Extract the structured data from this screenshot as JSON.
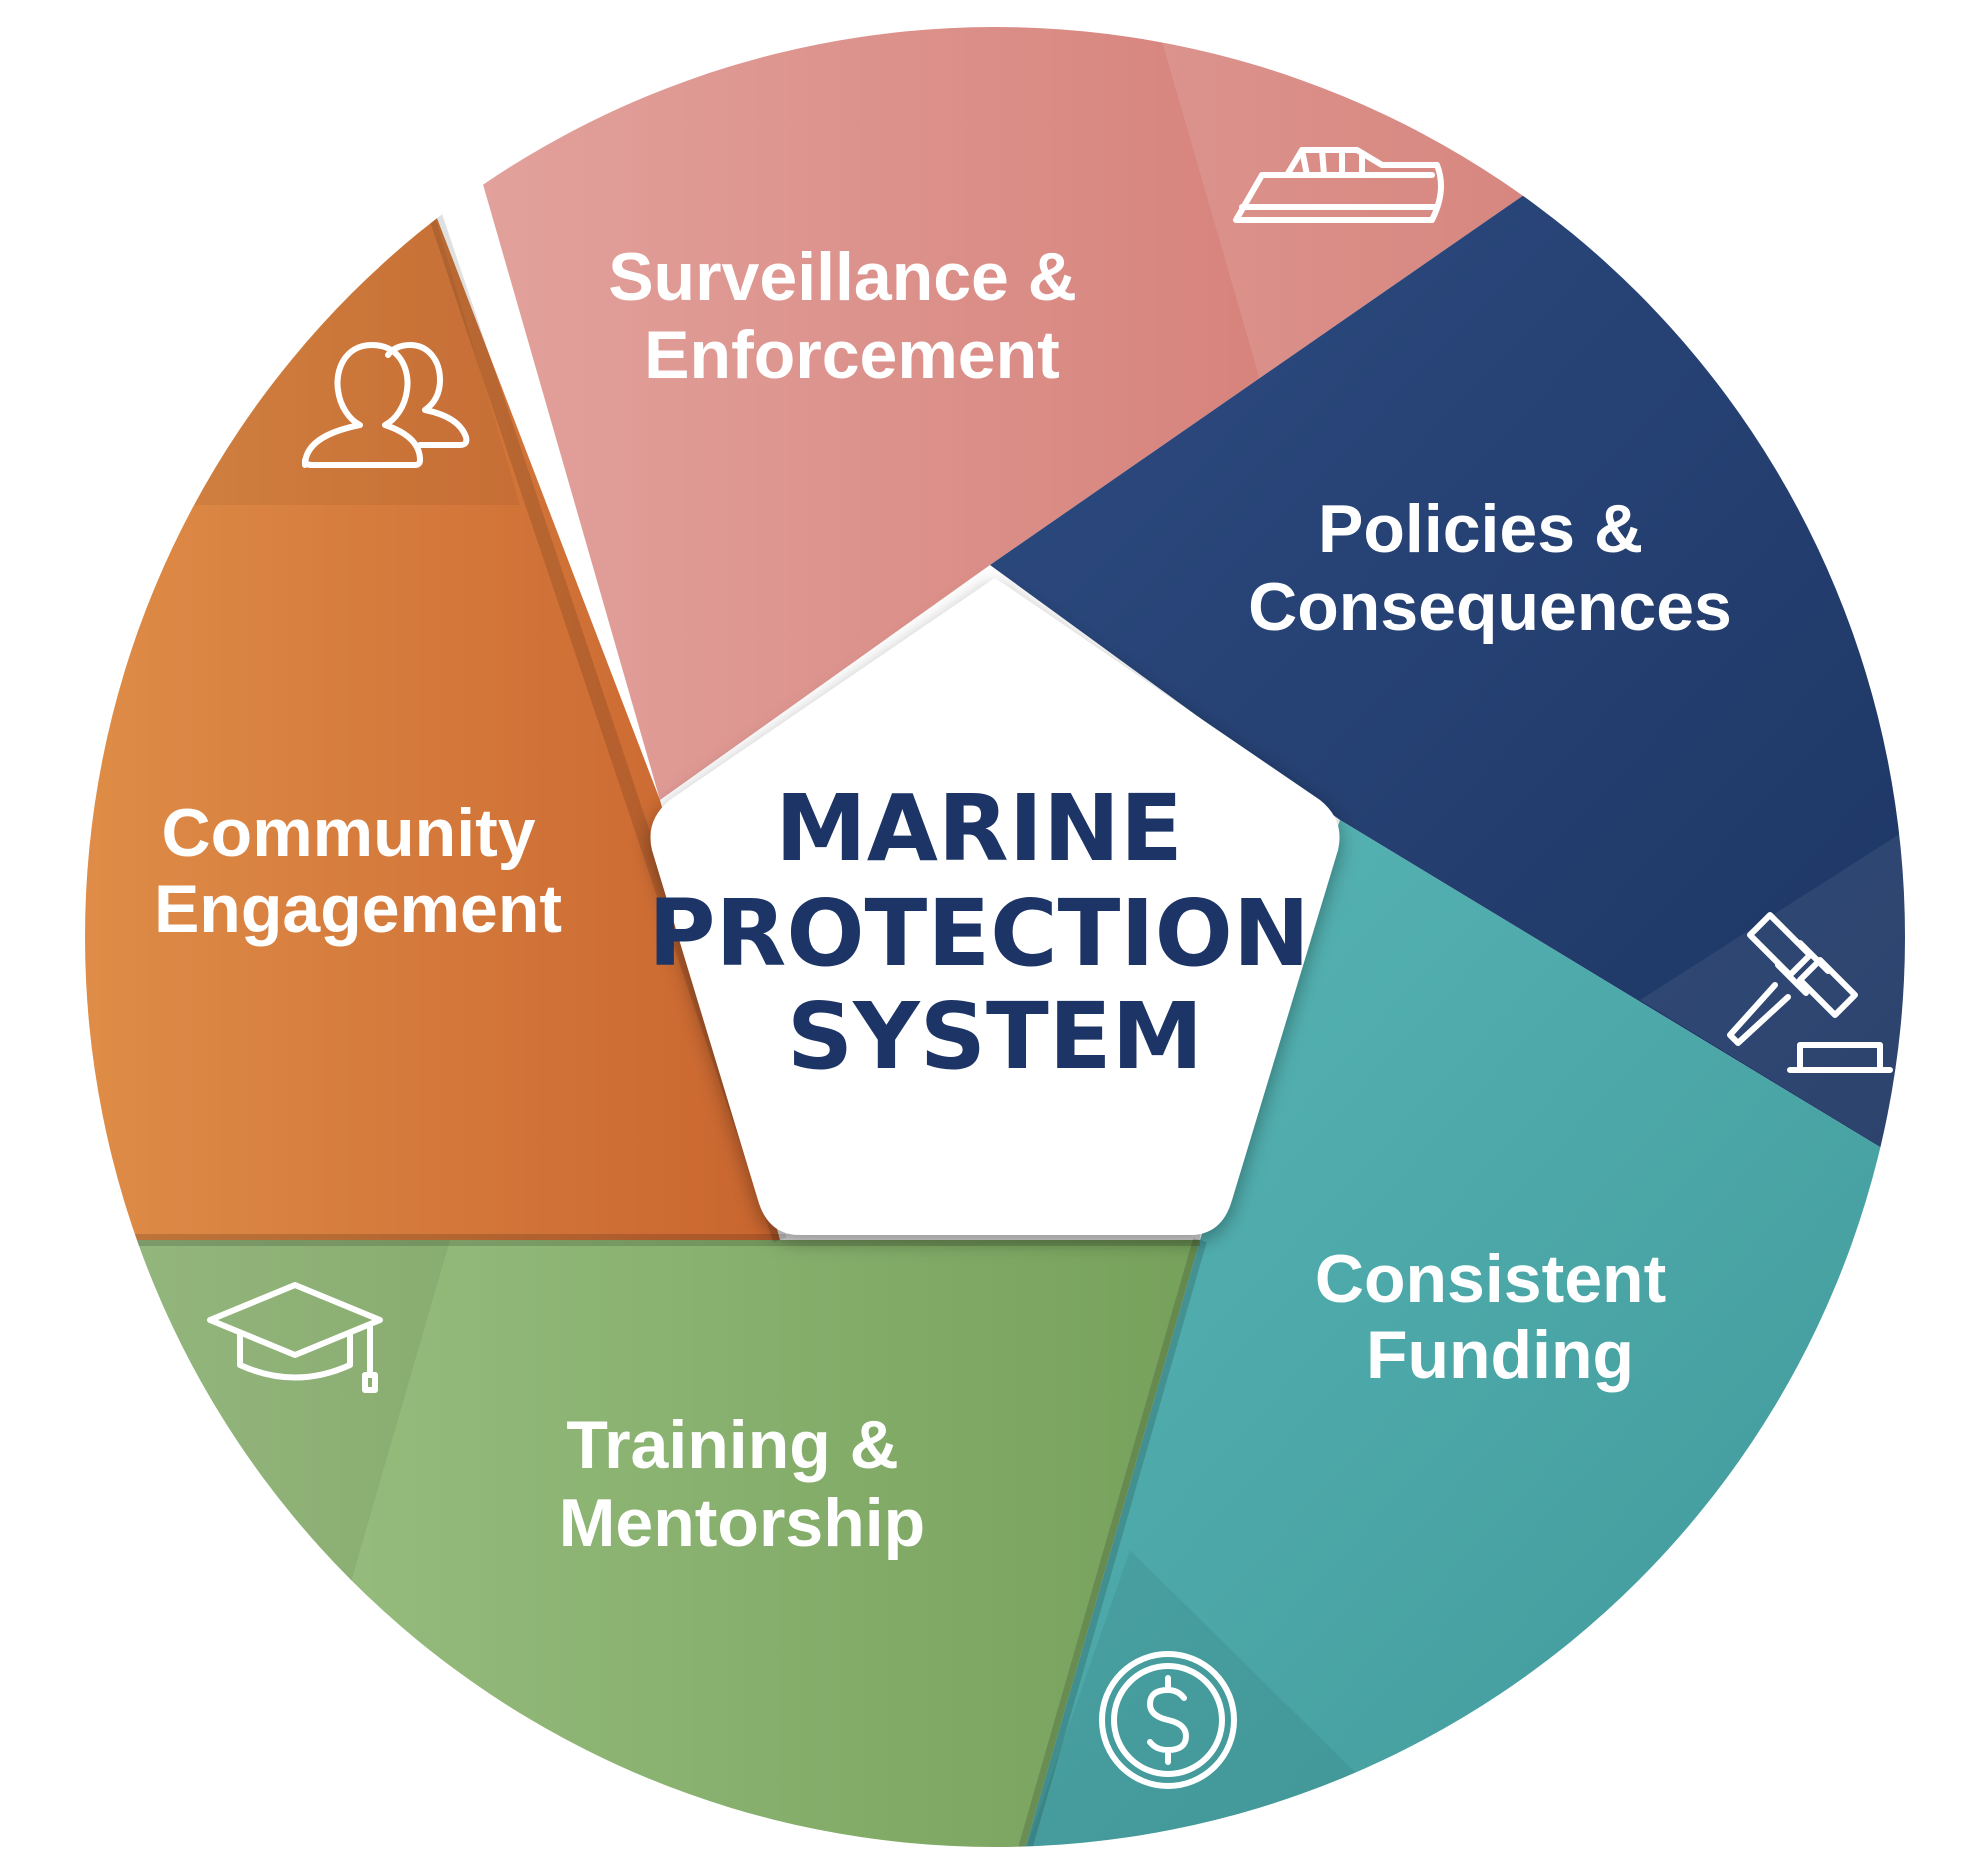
{
  "center": {
    "lines": [
      "MARINE",
      "PROTECTION",
      "SYSTEM"
    ],
    "color": "#1d3466"
  },
  "segments": [
    {
      "id": "surveillance",
      "lines": [
        "Surveillance &",
        "Enforcement"
      ],
      "icon": "boat-icon",
      "color_light": "#e2a19c",
      "color_dark": "#d37a70"
    },
    {
      "id": "policies",
      "lines": [
        "Policies &",
        "Consequences"
      ],
      "icon": "gavel-icon",
      "color_light": "#2c4a7f",
      "color_dark": "#1c3460"
    },
    {
      "id": "funding",
      "lines": [
        "Consistent",
        "Funding"
      ],
      "icon": "dollar-coin-icon",
      "color_light": "#55b3b3",
      "color_dark": "#3f9a9a"
    },
    {
      "id": "training",
      "lines": [
        "Training &",
        "Mentorship"
      ],
      "icon": "graduation-cap-icon",
      "color_light": "#9cc284",
      "color_dark": "#7aa55f"
    },
    {
      "id": "community",
      "lines": [
        "Community",
        "Engagement"
      ],
      "icon": "people-icon",
      "color_light": "#df8d45",
      "color_dark": "#cc6a32"
    }
  ]
}
